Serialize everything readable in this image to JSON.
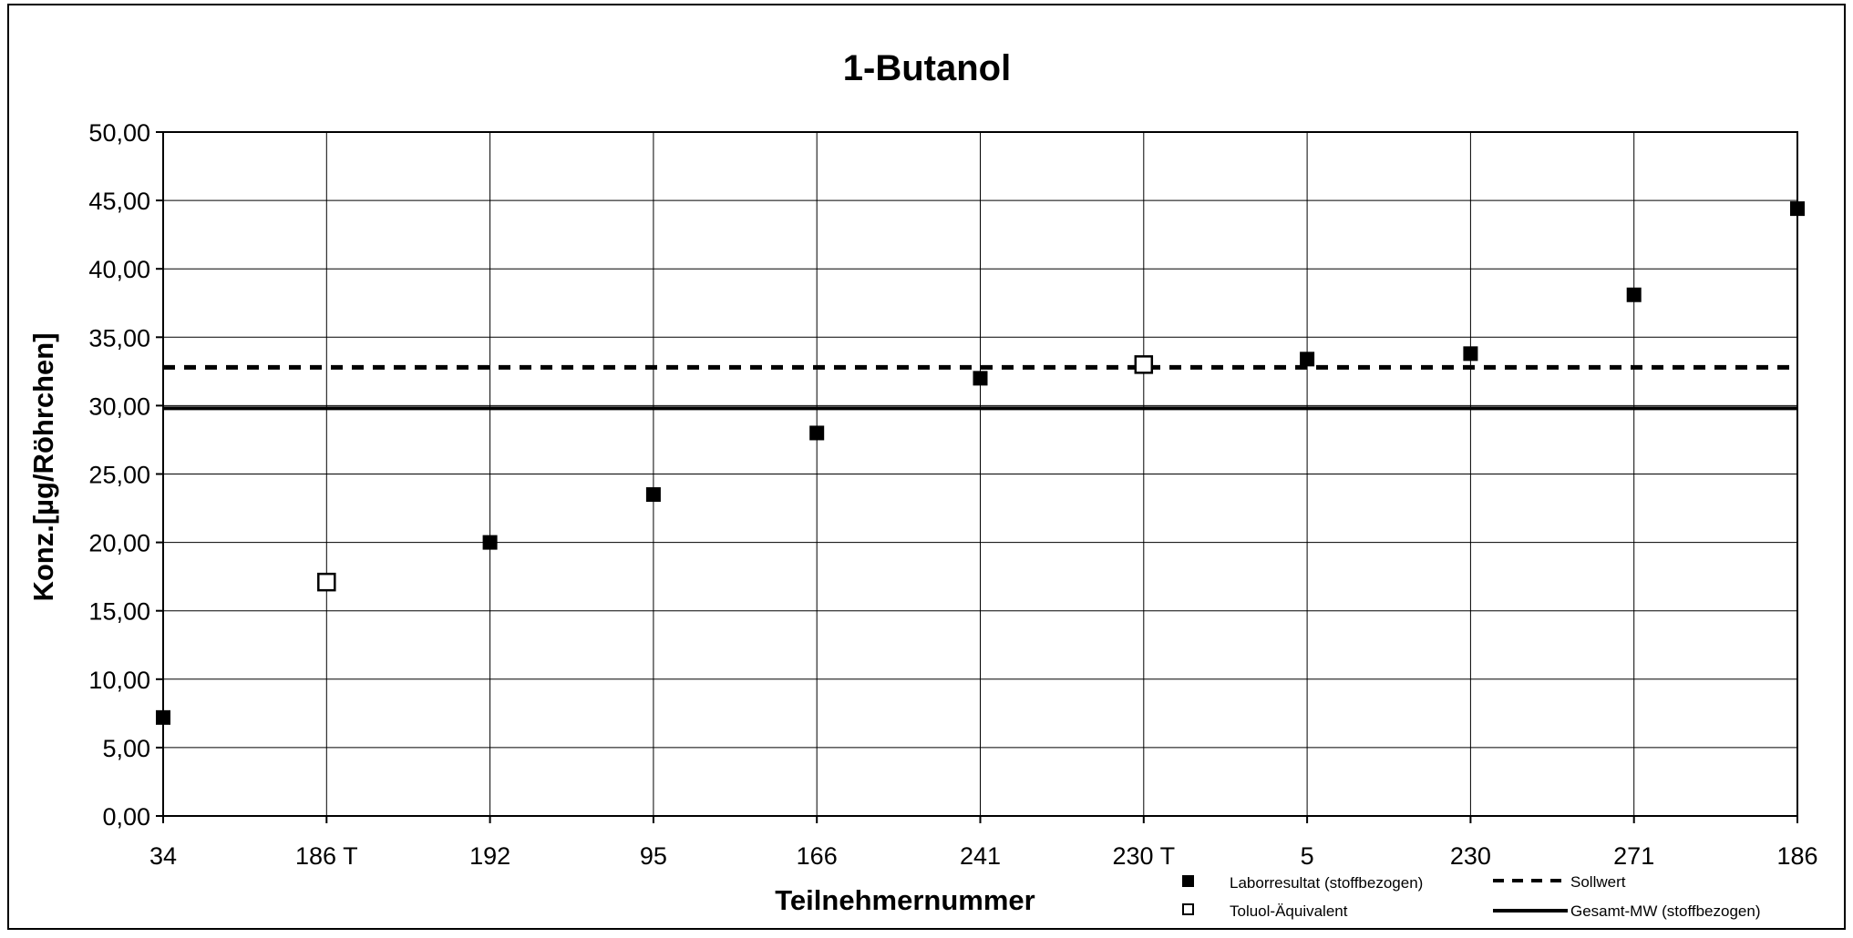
{
  "chart_data": {
    "type": "scatter",
    "title": "1-Butanol",
    "xlabel": "Teilnehmernummer",
    "ylabel": "Konz.[µg/Röhrchen]",
    "categories": [
      "34",
      "186 T",
      "192",
      "95",
      "166",
      "241",
      "230 T",
      "5",
      "230",
      "271",
      "186"
    ],
    "ylim": [
      0,
      50
    ],
    "ytick_labels": [
      "0,00",
      "5,00",
      "10,00",
      "15,00",
      "20,00",
      "25,00",
      "30,00",
      "35,00",
      "40,00",
      "45,00",
      "50,00"
    ],
    "grid": true,
    "series": [
      {
        "name": "Laborresultat (stoffbezogen)",
        "marker": "filled-square",
        "color": "#000000",
        "points": [
          {
            "x": "34",
            "y": 7.2
          },
          {
            "x": "192",
            "y": 20.0
          },
          {
            "x": "95",
            "y": 23.5
          },
          {
            "x": "166",
            "y": 28.0
          },
          {
            "x": "241",
            "y": 32.0
          },
          {
            "x": "5",
            "y": 33.4
          },
          {
            "x": "230",
            "y": 33.8
          },
          {
            "x": "271",
            "y": 38.1
          },
          {
            "x": "186",
            "y": 44.4
          }
        ]
      },
      {
        "name": "Toluol-Äquivalent",
        "marker": "open-square",
        "color": "#000000",
        "points": [
          {
            "x": "186 T",
            "y": 17.1
          },
          {
            "x": "230 T",
            "y": 33.0
          }
        ]
      }
    ],
    "reference_lines": [
      {
        "name": "Sollwert",
        "y": 32.8,
        "style": "dashed",
        "color": "#000000"
      },
      {
        "name": "Gesamt-MW (stoffbezogen)",
        "y": 29.8,
        "style": "solid",
        "color": "#000000"
      }
    ],
    "legend": {
      "placement": "bottom-right",
      "items": [
        {
          "label": "Laborresultat (stoffbezogen)",
          "symbol": "filled-square"
        },
        {
          "label": "Sollwert",
          "symbol": "dashed-line"
        },
        {
          "label": "Toluol-Äquivalent",
          "symbol": "open-square"
        },
        {
          "label": "Gesamt-MW (stoffbezogen)",
          "symbol": "solid-line"
        }
      ]
    }
  }
}
